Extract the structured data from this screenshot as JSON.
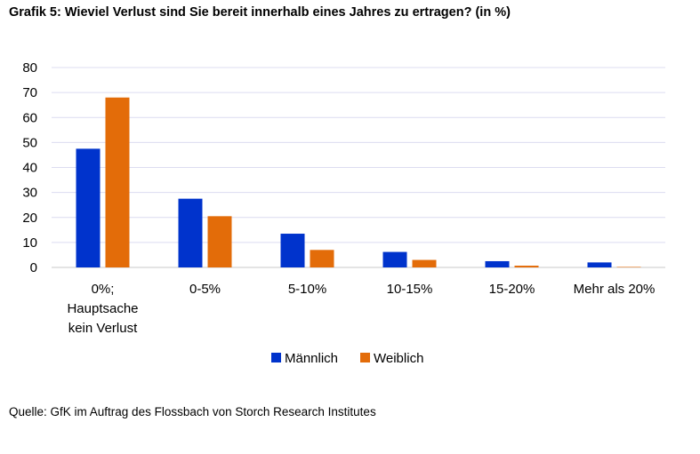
{
  "title": "Grafik 5: Wieviel Verlust sind Sie bereit innerhalb eines Jahres zu ertragen? (in %)",
  "source": "Quelle: GfK im Auftrag des Flossbach von Storch Research Institutes",
  "chart_data": {
    "type": "bar",
    "title": "Grafik 5: Wieviel Verlust sind Sie bereit innerhalb eines Jahres zu ertragen? (in %)",
    "xlabel": "",
    "ylabel": "",
    "ylim": [
      0,
      80
    ],
    "yticks": [
      "0",
      "10",
      "20",
      "30",
      "40",
      "50",
      "60",
      "70",
      "80"
    ],
    "grid": true,
    "legend_position": "bottom",
    "categories": [
      [
        "0%;",
        "Hauptsache",
        "kein Verlust"
      ],
      [
        "0-5%"
      ],
      [
        "5-10%"
      ],
      [
        "10-15%"
      ],
      [
        "15-20%"
      ],
      [
        "Mehr als 20%"
      ]
    ],
    "series": [
      {
        "name": "Männlich",
        "color": "#0033cc",
        "values": [
          47.5,
          27.5,
          13.5,
          6.2,
          2.5,
          2.0
        ]
      },
      {
        "name": "Weiblich",
        "color": "#e36c09",
        "values": [
          68,
          20.5,
          7.0,
          3.0,
          0.7,
          0.2
        ]
      }
    ]
  }
}
